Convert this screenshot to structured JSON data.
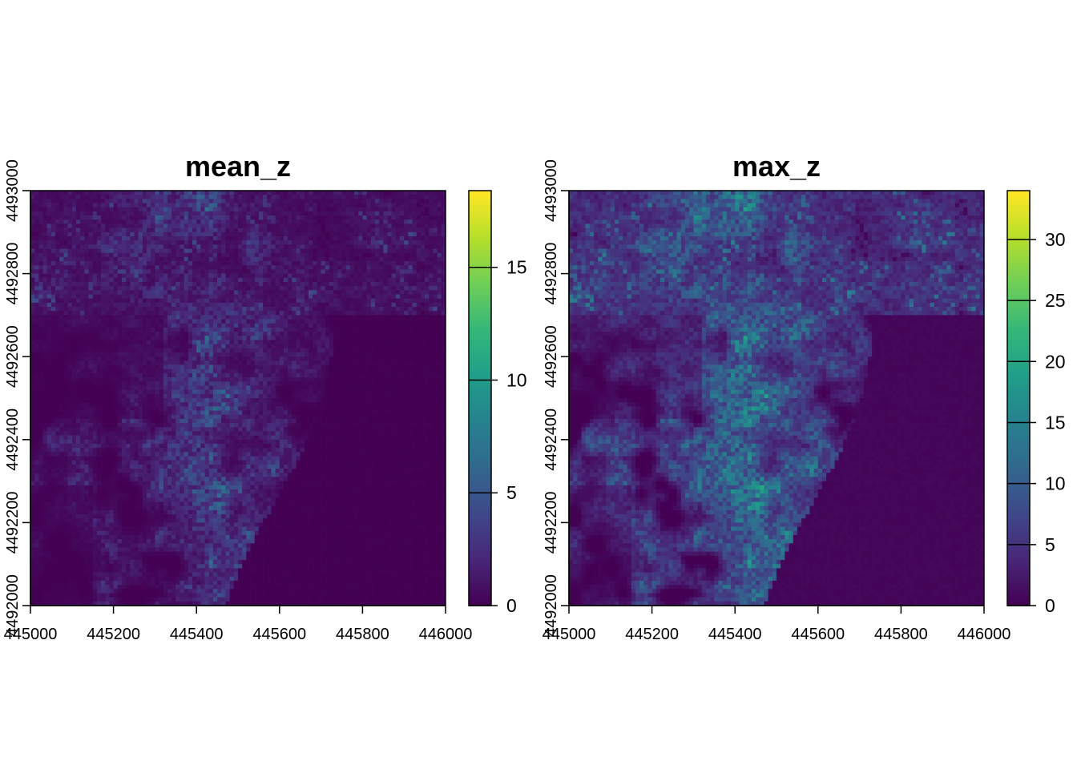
{
  "chart_data": [
    {
      "type": "heatmap",
      "title": "mean_z",
      "xlabel": "",
      "ylabel": "",
      "xlim": [
        445000,
        446000
      ],
      "ylim": [
        4492000,
        4493000
      ],
      "x_ticks": [
        445000,
        445200,
        445400,
        445600,
        445800,
        446000
      ],
      "x_tick_labels": [
        "445000",
        "445200",
        "445400",
        "445600",
        "445800",
        "446000"
      ],
      "y_ticks": [
        4492000,
        4492200,
        4492400,
        4492600,
        4492800,
        4493000
      ],
      "y_tick_labels": [
        "4492000",
        "4492200",
        "4492400",
        "4492600",
        "4492800",
        "4493000"
      ],
      "colorscale": "viridis",
      "value_range": [
        0,
        18.4
      ],
      "colorbar_ticks": [
        0,
        5,
        10,
        15
      ],
      "colorbar_tick_labels": [
        "0",
        "5",
        "10",
        "15"
      ]
    },
    {
      "type": "heatmap",
      "title": "max_z",
      "xlabel": "",
      "ylabel": "",
      "xlim": [
        445000,
        446000
      ],
      "ylim": [
        4492000,
        4493000
      ],
      "x_ticks": [
        445000,
        445200,
        445400,
        445600,
        445800,
        446000
      ],
      "x_tick_labels": [
        "445000",
        "445200",
        "445400",
        "445600",
        "445800",
        "446000"
      ],
      "y_ticks": [
        4492000,
        4492200,
        4492400,
        4492600,
        4492800,
        4493000
      ],
      "y_tick_labels": [
        "4492000",
        "4492200",
        "4492400",
        "4492600",
        "4492800",
        "4493000"
      ],
      "colorscale": "viridis",
      "value_range": [
        0,
        34
      ],
      "colorbar_ticks": [
        0,
        5,
        10,
        15,
        20,
        25,
        30
      ],
      "colorbar_tick_labels": [
        "0",
        "5",
        "10",
        "15",
        "20",
        "25",
        "30"
      ]
    }
  ],
  "colors": {
    "viridis": [
      "#440154",
      "#482878",
      "#3e4989",
      "#31688e",
      "#26828e",
      "#1f9e89",
      "#35b779",
      "#6ece58",
      "#b5de2b",
      "#fde725"
    ]
  }
}
